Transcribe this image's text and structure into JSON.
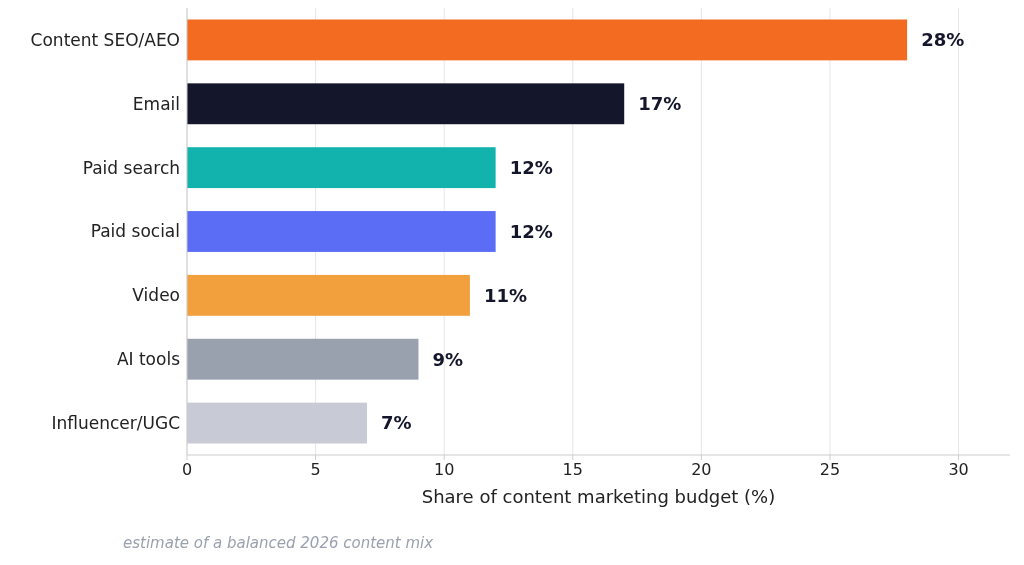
{
  "chart_data": {
    "type": "bar",
    "orientation": "horizontal",
    "categories": [
      "Content SEO/AEO",
      "Email",
      "Paid search",
      "Paid social",
      "Video",
      "AI tools",
      "Influencer/UGC"
    ],
    "values": [
      28,
      17,
      12,
      12,
      11,
      9,
      7
    ],
    "colors": [
      "#f26b21",
      "#14162b",
      "#12b3ad",
      "#5b6cf5",
      "#f2a03d",
      "#9aa1ae",
      "#c8cbd6"
    ],
    "value_labels": [
      "28%",
      "17%",
      "12%",
      "12%",
      "11%",
      "9%",
      "7%"
    ],
    "xlim": [
      0,
      32
    ],
    "xticks": [
      0,
      5,
      10,
      15,
      20,
      25,
      30
    ],
    "grid": "x",
    "xlabel": "Share of content marketing budget (%)",
    "annotations": [
      "estimate of a balanced 2026 content mix"
    ]
  }
}
